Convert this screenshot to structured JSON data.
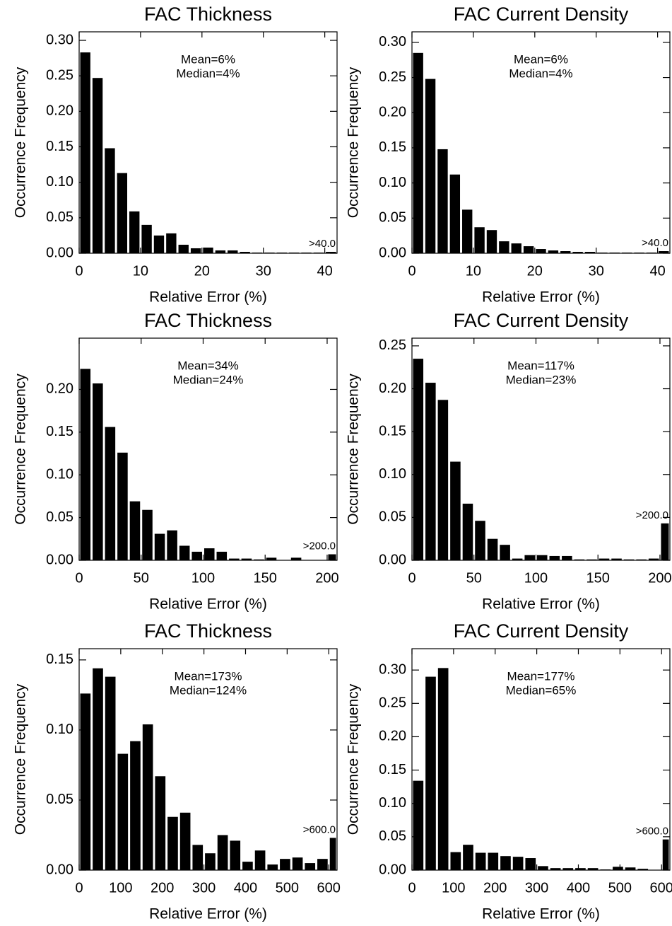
{
  "chart_data": [
    {
      "type": "histogram",
      "title": "FAC Thickness",
      "xlabel": "Relative Error (%)",
      "ylabel": "Occurrence Frequency",
      "mean_label": "Mean=6%",
      "median_label": "Median=4%",
      "overflow_label": ">40.0",
      "color": "#000000",
      "bins": [
        0,
        2,
        4,
        6,
        8,
        10,
        12,
        14,
        16,
        18,
        20,
        22,
        24,
        26,
        28,
        30,
        32,
        34,
        36,
        38,
        40,
        42
      ],
      "values": [
        0.283,
        0.247,
        0.148,
        0.113,
        0.059,
        0.04,
        0.025,
        0.028,
        0.012,
        0.007,
        0.008,
        0.004,
        0.004,
        0.002,
        0.001,
        0.001,
        0.001,
        0.001,
        0.001,
        0.001,
        0.002
      ],
      "xlim": [
        0,
        42
      ],
      "xticks": [
        0,
        10,
        20,
        30,
        40
      ],
      "ylim": [
        0,
        0.312
      ],
      "yticks": [
        {
          "value": 0,
          "label": "0.00"
        },
        0.05,
        {
          "value": 0.1,
          "label": "0.10"
        },
        0.15,
        {
          "value": 0.2,
          "label": "0.20"
        },
        0.25,
        {
          "value": 0.3,
          "label": "0.30"
        }
      ]
    },
    {
      "type": "histogram",
      "title": "FAC Current Density",
      "xlabel": "Relative Error (%)",
      "ylabel": "Occurrence Frequency",
      "mean_label": "Mean=6%",
      "median_label": "Median=4%",
      "overflow_label": ">40.0",
      "color": "#000000",
      "bins": [
        0,
        2,
        4,
        6,
        8,
        10,
        12,
        14,
        16,
        18,
        20,
        22,
        24,
        26,
        28,
        30,
        32,
        34,
        36,
        38,
        40,
        42
      ],
      "values": [
        0.285,
        0.248,
        0.148,
        0.112,
        0.062,
        0.037,
        0.033,
        0.017,
        0.014,
        0.01,
        0.006,
        0.004,
        0.003,
        0.002,
        0.002,
        0.001,
        0.001,
        0.001,
        0.001,
        0.001,
        0.003
      ],
      "xlim": [
        0,
        42
      ],
      "xticks": [
        0,
        10,
        20,
        30,
        40
      ],
      "ylim": [
        0,
        0.315
      ],
      "yticks": [
        {
          "value": 0,
          "label": "0.00"
        },
        0.05,
        {
          "value": 0.1,
          "label": "0.10"
        },
        0.15,
        {
          "value": 0.2,
          "label": "0.20"
        },
        0.25,
        {
          "value": 0.3,
          "label": "0.30"
        }
      ]
    },
    {
      "type": "histogram",
      "title": "FAC Thickness",
      "xlabel": "Relative Error (%)",
      "ylabel": "Occurrence Frequency",
      "mean_label": "Mean=34%",
      "median_label": "Median=24%",
      "overflow_label": ">200.0",
      "color": "#000000",
      "bins": [
        0,
        10,
        20,
        30,
        40,
        50,
        60,
        70,
        80,
        90,
        100,
        110,
        120,
        130,
        140,
        150,
        160,
        170,
        180,
        190,
        200,
        210
      ],
      "values": [
        0.224,
        0.207,
        0.156,
        0.126,
        0.069,
        0.059,
        0.031,
        0.035,
        0.017,
        0.01,
        0.014,
        0.01,
        0.002,
        0.002,
        0.001,
        0.003,
        0,
        0.003,
        0,
        0,
        0.007
      ],
      "xlim": [
        0,
        208
      ],
      "xticks": [
        0,
        50,
        100,
        150,
        200
      ],
      "ylim": [
        0,
        0.26
      ],
      "yticks": [
        {
          "value": 0,
          "label": "0.00"
        },
        0.05,
        {
          "value": 0.1,
          "label": "0.10"
        },
        0.15,
        {
          "value": 0.2,
          "label": "0.20"
        }
      ]
    },
    {
      "type": "histogram",
      "title": "FAC Current Density",
      "xlabel": "Relative Error (%)",
      "ylabel": "Occurrence Frequency",
      "mean_label": "Mean=117%",
      "median_label": "Median=23%",
      "overflow_label": ">200.0",
      "color": "#000000",
      "bins": [
        0,
        10,
        20,
        30,
        40,
        50,
        60,
        70,
        80,
        90,
        100,
        110,
        120,
        130,
        140,
        150,
        160,
        170,
        180,
        190,
        200,
        210
      ],
      "values": [
        0.235,
        0.207,
        0.187,
        0.115,
        0.066,
        0.046,
        0.025,
        0.018,
        0.002,
        0.006,
        0.006,
        0.005,
        0.005,
        0.001,
        0.001,
        0.002,
        0.002,
        0.001,
        0.001,
        0.002,
        0.043
      ],
      "xlim": [
        0,
        208
      ],
      "xticks": [
        0,
        50,
        100,
        150,
        200
      ],
      "ylim": [
        0,
        0.259
      ],
      "yticks": [
        {
          "value": 0,
          "label": "0.00"
        },
        0.05,
        {
          "value": 0.1,
          "label": "0.10"
        },
        0.15,
        {
          "value": 0.2,
          "label": "0.20"
        },
        0.25
      ]
    },
    {
      "type": "histogram",
      "title": "FAC Thickness",
      "xlabel": "Relative Error (%)",
      "ylabel": "Occurrence Frequency",
      "mean_label": "Mean=173%",
      "median_label": "Median=124%",
      "overflow_label": ">600.0",
      "color": "#000000",
      "bins": [
        0,
        30,
        60,
        90,
        120,
        150,
        180,
        210,
        240,
        270,
        300,
        330,
        360,
        390,
        420,
        450,
        480,
        510,
        540,
        570,
        600,
        620
      ],
      "values": [
        0.126,
        0.144,
        0.138,
        0.083,
        0.092,
        0.104,
        0.067,
        0.038,
        0.041,
        0.018,
        0.012,
        0.025,
        0.021,
        0.006,
        0.014,
        0.004,
        0.008,
        0.009,
        0.005,
        0.008,
        0.023
      ],
      "xlim": [
        0,
        620
      ],
      "xticks": [
        0,
        100,
        200,
        300,
        400,
        500,
        600
      ],
      "ylim": [
        0,
        0.158
      ],
      "yticks": [
        {
          "value": 0,
          "label": "0.00"
        },
        0.05,
        {
          "value": 0.1,
          "label": "0.10"
        },
        0.15
      ]
    },
    {
      "type": "histogram",
      "title": "FAC Current Density",
      "xlabel": "Relative Error (%)",
      "ylabel": "Occurrence Frequency",
      "mean_label": "Mean=177%",
      "median_label": "Median=65%",
      "overflow_label": ">600.0",
      "color": "#000000",
      "bins": [
        0,
        30,
        60,
        90,
        120,
        150,
        180,
        210,
        240,
        270,
        300,
        330,
        360,
        390,
        420,
        450,
        480,
        510,
        540,
        570,
        600,
        620
      ],
      "values": [
        0.134,
        0.29,
        0.303,
        0.027,
        0.038,
        0.026,
        0.026,
        0.021,
        0.02,
        0.018,
        0.006,
        0.003,
        0.003,
        0.003,
        0.003,
        0.001,
        0.005,
        0.004,
        0.002,
        0,
        0.046
      ],
      "xlim": [
        0,
        620
      ],
      "xticks": [
        0,
        100,
        200,
        300,
        400,
        500,
        600
      ],
      "ylim": [
        0,
        0.332
      ],
      "yticks": [
        {
          "value": 0,
          "label": "0.00"
        },
        0.05,
        {
          "value": 0.1,
          "label": "0.10"
        },
        0.15,
        {
          "value": 0.2,
          "label": "0.20"
        },
        0.25,
        {
          "value": 0.3,
          "label": "0.30"
        }
      ]
    }
  ]
}
